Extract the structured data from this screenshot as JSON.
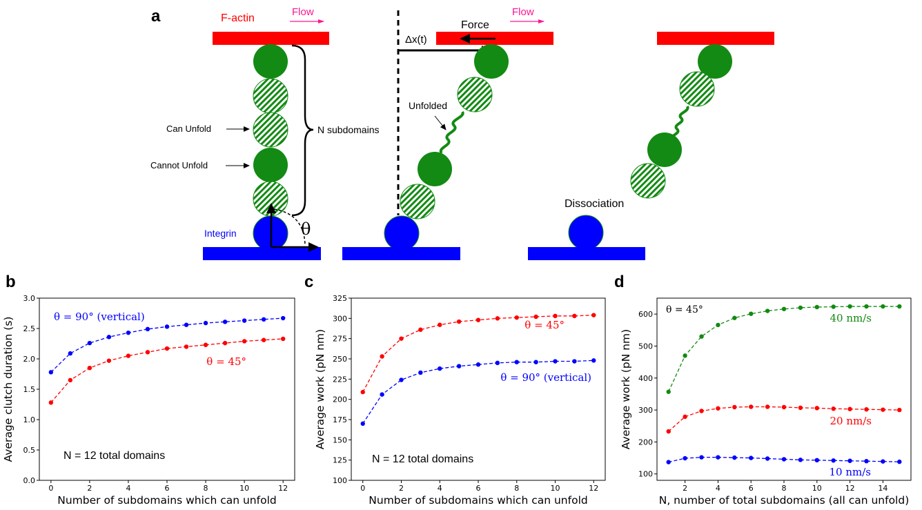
{
  "panel_labels": {
    "a": "a",
    "b": "b",
    "c": "c",
    "d": "d"
  },
  "schematic": {
    "factin_label": "F-actin",
    "flow_label_1": "Flow",
    "flow_label_2": "Flow",
    "force_label": "Force",
    "dx_label": "Δx(t)",
    "integrin_label": "Integrin",
    "can_unfold_label": "Can Unfold",
    "cannot_unfold_label": "Cannot Unfold",
    "n_subdomains_label": "N subdomains",
    "unfolded_label": "Unfolded",
    "dissociation_label": "Dissociation",
    "theta_label": "θ",
    "colors": {
      "actin": "#ff0000",
      "integrin": "#0000ff",
      "domain": "#138a13",
      "flow": "#ff1493"
    }
  },
  "chart_data": [
    {
      "id": "b",
      "type": "line",
      "xlabel": "Number of subdomains which can unfold",
      "ylabel": "Average clutch duration (s)",
      "xlim": [
        -0.6,
        12.6
      ],
      "ylim": [
        0.0,
        3.0
      ],
      "xticks": [
        0,
        2,
        4,
        6,
        8,
        10,
        12
      ],
      "yticks": [
        0.0,
        0.5,
        1.0,
        1.5,
        2.0,
        2.5,
        3.0
      ],
      "ytick_format": 1,
      "annotation": "N = 12 total domains",
      "series": [
        {
          "name": "θ = 90° (vertical)",
          "color": "#0000ff",
          "x": [
            0,
            1,
            2,
            3,
            4,
            5,
            6,
            7,
            8,
            9,
            10,
            11,
            12
          ],
          "values": [
            1.78,
            2.09,
            2.26,
            2.36,
            2.43,
            2.49,
            2.53,
            2.56,
            2.59,
            2.61,
            2.63,
            2.65,
            2.67
          ]
        },
        {
          "name": "θ = 45°",
          "color": "#ff0000",
          "x": [
            0,
            1,
            2,
            3,
            4,
            5,
            6,
            7,
            8,
            9,
            10,
            11,
            12
          ],
          "values": [
            1.28,
            1.65,
            1.85,
            1.97,
            2.05,
            2.11,
            2.17,
            2.2,
            2.23,
            2.26,
            2.29,
            2.31,
            2.33
          ]
        }
      ]
    },
    {
      "id": "c",
      "type": "line",
      "xlabel": "Number of subdomains which can unfold",
      "ylabel": "Average work (pN nm)",
      "xlim": [
        -0.6,
        12.6
      ],
      "ylim": [
        100,
        325
      ],
      "xticks": [
        0,
        2,
        4,
        6,
        8,
        10,
        12
      ],
      "yticks": [
        100,
        125,
        150,
        175,
        200,
        225,
        250,
        275,
        300,
        325
      ],
      "ytick_format": 0,
      "annotation": "N = 12 total domains",
      "series": [
        {
          "name": "θ = 45°",
          "color": "#ff0000",
          "x": [
            0,
            1,
            2,
            3,
            4,
            5,
            6,
            7,
            8,
            9,
            10,
            11,
            12
          ],
          "values": [
            209,
            253,
            275,
            286,
            292,
            296,
            298,
            300,
            301,
            302,
            303,
            303,
            304
          ]
        },
        {
          "name": "θ = 90° (vertical)",
          "color": "#0000ff",
          "x": [
            0,
            1,
            2,
            3,
            4,
            5,
            6,
            7,
            8,
            9,
            10,
            11,
            12
          ],
          "values": [
            170,
            206,
            224,
            233,
            238,
            241,
            243,
            245,
            246,
            246,
            247,
            247,
            248
          ]
        }
      ]
    },
    {
      "id": "d",
      "type": "line",
      "xlabel": "N, number of total subdomains (all can unfold)",
      "ylabel": "Average work (pN nm)",
      "xlim": [
        0.3,
        15.7
      ],
      "ylim": [
        80,
        650
      ],
      "xticks": [
        2,
        4,
        6,
        8,
        10,
        12,
        14
      ],
      "yticks": [
        100,
        200,
        300,
        400,
        500,
        600
      ],
      "ytick_format": 0,
      "annotation": "θ = 45°",
      "series": [
        {
          "name": "40 nm/s",
          "color": "#118a11",
          "x": [
            1,
            2,
            3,
            4,
            5,
            6,
            7,
            8,
            9,
            10,
            11,
            12,
            13,
            14,
            15
          ],
          "values": [
            357,
            470,
            530,
            566,
            588,
            601,
            610,
            616,
            620,
            622,
            623,
            624,
            624,
            624,
            624
          ]
        },
        {
          "name": "20 nm/s",
          "color": "#ff0000",
          "x": [
            1,
            2,
            3,
            4,
            5,
            6,
            7,
            8,
            9,
            10,
            11,
            12,
            13,
            14,
            15
          ],
          "values": [
            233,
            279,
            297,
            305,
            309,
            310,
            310,
            309,
            307,
            306,
            304,
            303,
            302,
            301,
            300
          ]
        },
        {
          "name": "10 nm/s",
          "color": "#0000ff",
          "x": [
            1,
            2,
            3,
            4,
            5,
            6,
            7,
            8,
            9,
            10,
            11,
            12,
            13,
            14,
            15
          ],
          "values": [
            137,
            149,
            152,
            152,
            151,
            150,
            148,
            146,
            144,
            143,
            142,
            141,
            140,
            139,
            138
          ]
        }
      ]
    }
  ]
}
